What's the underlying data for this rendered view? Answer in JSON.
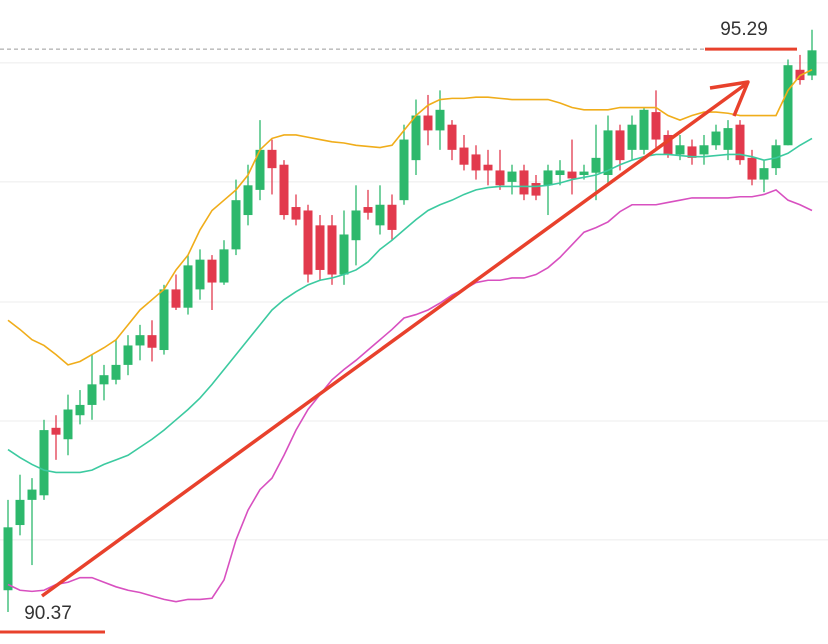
{
  "chart_data": {
    "type": "candlestick",
    "open": [
      90.56,
      91.13,
      91.35,
      91.39,
      91.98,
      91.88,
      92.09,
      92.18,
      92.36,
      92.4,
      92.53,
      92.7,
      92.79,
      92.66,
      93.19,
      93.03,
      93.19,
      93.45,
      93.25,
      93.54,
      93.84,
      94.06,
      94.41,
      94.28,
      93.91,
      93.88,
      93.75,
      93.75,
      93.32,
      93.62,
      93.91,
      93.75,
      93.93,
      93.97,
      94.32,
      94.71,
      94.58,
      94.63,
      94.43,
      94.37,
      94.28,
      94.23,
      94.13,
      94.23,
      94.12,
      94.1,
      94.19,
      94.22,
      94.19,
      94.21,
      94.19,
      94.58,
      94.41,
      94.41,
      94.74,
      94.54,
      94.37,
      94.44,
      94.37,
      94.45,
      94.41,
      94.63,
      94.34,
      94.15,
      94.25,
      94.45,
      95.11,
      95.06
    ],
    "high": [
      91.35,
      91.57,
      91.54,
      92.05,
      92.09,
      92.27,
      92.31,
      92.62,
      92.53,
      92.75,
      92.79,
      92.88,
      92.92,
      93.23,
      93.32,
      93.49,
      93.54,
      93.49,
      93.62,
      94.15,
      94.28,
      94.67,
      94.5,
      94.32,
      94.02,
      93.93,
      93.84,
      93.84,
      93.88,
      94.1,
      94.06,
      94.1,
      94.02,
      94.63,
      94.85,
      94.89,
      94.93,
      94.67,
      94.54,
      94.45,
      94.41,
      94.41,
      94.28,
      94.28,
      94.19,
      94.28,
      94.32,
      94.5,
      94.28,
      94.63,
      94.71,
      94.63,
      94.71,
      94.78,
      94.93,
      94.58,
      94.54,
      94.5,
      94.54,
      94.63,
      94.67,
      94.67,
      94.41,
      94.32,
      94.5,
      95.2,
      95.24,
      95.46
    ],
    "low": [
      90.37,
      91.04,
      90.78,
      91.35,
      91.7,
      91.74,
      92.01,
      92.05,
      92.22,
      92.36,
      92.44,
      92.57,
      92.56,
      92.62,
      93.01,
      92.97,
      93.1,
      93.01,
      93.23,
      93.49,
      93.75,
      93.97,
      94.02,
      93.8,
      93.75,
      93.25,
      93.27,
      93.23,
      93.23,
      93.4,
      93.8,
      93.67,
      93.62,
      93.93,
      94.19,
      94.45,
      94.41,
      94.32,
      94.23,
      94.15,
      94.1,
      94.06,
      94.02,
      93.97,
      93.97,
      93.84,
      94.1,
      94.02,
      94.15,
      93.97,
      94.1,
      94.23,
      94.32,
      94.37,
      94.41,
      94.34,
      94.32,
      94.28,
      94.28,
      94.41,
      94.32,
      94.28,
      94.1,
      94.04,
      94.19,
      94.45,
      94.98,
      95.02
    ],
    "close": [
      91.11,
      91.35,
      91.44,
      91.96,
      91.92,
      92.14,
      92.18,
      92.36,
      92.44,
      92.53,
      92.7,
      92.79,
      92.68,
      93.19,
      93.03,
      93.4,
      93.45,
      93.25,
      93.54,
      93.97,
      94.1,
      94.41,
      94.25,
      93.84,
      93.8,
      93.32,
      93.36,
      93.32,
      93.67,
      93.88,
      93.86,
      93.93,
      93.71,
      94.5,
      94.71,
      94.58,
      94.76,
      94.41,
      94.28,
      94.23,
      94.23,
      94.1,
      94.22,
      94.02,
      94.01,
      94.23,
      94.23,
      94.16,
      94.22,
      94.34,
      94.58,
      94.32,
      94.63,
      94.76,
      94.5,
      94.37,
      94.45,
      94.34,
      94.45,
      94.57,
      94.6,
      94.32,
      94.15,
      94.25,
      94.45,
      95.15,
      95.02,
      95.28
    ],
    "up_color": "#2db86c",
    "down_color": "#e23a4d",
    "bands": [
      {
        "color": "#f0ad1a",
        "values": [
          92.92,
          92.84,
          92.75,
          92.7,
          92.62,
          92.53,
          92.56,
          92.62,
          92.68,
          92.75,
          92.88,
          93.01,
          93.1,
          93.19,
          93.36,
          93.49,
          93.71,
          93.88,
          93.97,
          94.06,
          94.19,
          94.41,
          94.51,
          94.54,
          94.54,
          94.52,
          94.5,
          94.48,
          94.47,
          94.45,
          94.44,
          94.43,
          94.45,
          94.58,
          94.71,
          94.8,
          94.85,
          94.86,
          94.86,
          94.87,
          94.87,
          94.86,
          94.85,
          94.85,
          94.85,
          94.85,
          94.82,
          94.78,
          94.76,
          94.76,
          94.76,
          94.78,
          94.78,
          94.78,
          94.78,
          94.71,
          94.67,
          94.71,
          94.74,
          94.74,
          94.73,
          94.71,
          94.71,
          94.71,
          94.71,
          94.93,
          95.06,
          95.11
        ]
      },
      {
        "color": "#3ccaa0",
        "values": [
          91.79,
          91.72,
          91.66,
          91.61,
          91.59,
          91.59,
          91.59,
          91.61,
          91.66,
          91.7,
          91.74,
          91.81,
          91.88,
          91.96,
          92.05,
          92.14,
          92.24,
          92.36,
          92.49,
          92.62,
          92.75,
          92.88,
          93.01,
          93.1,
          93.17,
          93.23,
          93.27,
          93.29,
          93.32,
          93.36,
          93.43,
          93.54,
          93.62,
          93.71,
          93.8,
          93.88,
          93.93,
          93.97,
          94.02,
          94.06,
          94.08,
          94.09,
          94.09,
          94.09,
          94.09,
          94.1,
          94.12,
          94.15,
          94.17,
          94.19,
          94.23,
          94.28,
          94.32,
          94.35,
          94.37,
          94.37,
          94.36,
          94.35,
          94.35,
          94.36,
          94.37,
          94.37,
          94.35,
          94.32,
          94.34,
          94.38,
          94.45,
          94.51
        ]
      },
      {
        "color": "#d850c0",
        "values": [
          90.61,
          90.56,
          90.55,
          90.56,
          90.61,
          90.63,
          90.67,
          90.67,
          90.63,
          90.59,
          90.56,
          90.54,
          90.51,
          90.48,
          90.46,
          90.48,
          90.48,
          90.49,
          90.65,
          91.0,
          91.26,
          91.44,
          91.54,
          91.74,
          91.96,
          92.14,
          92.27,
          92.4,
          92.49,
          92.57,
          92.66,
          92.75,
          92.84,
          92.94,
          92.97,
          93.01,
          93.07,
          93.14,
          93.19,
          93.25,
          93.27,
          93.27,
          93.29,
          93.29,
          93.32,
          93.38,
          93.47,
          93.58,
          93.69,
          93.73,
          93.78,
          93.87,
          93.93,
          93.93,
          93.93,
          93.95,
          93.97,
          93.99,
          93.99,
          93.99,
          93.99,
          94.0,
          94.0,
          94.02,
          94.06,
          93.97,
          93.93,
          93.88
        ]
      }
    ],
    "ylim": [
      90.09,
      95.72
    ],
    "yticks": [
      95.17,
      94.13,
      93.08,
      92.04,
      91.0
    ],
    "grid": true,
    "price_labels": [
      95.29,
      90.37
    ],
    "label_line_color": "#e8412c"
  }
}
